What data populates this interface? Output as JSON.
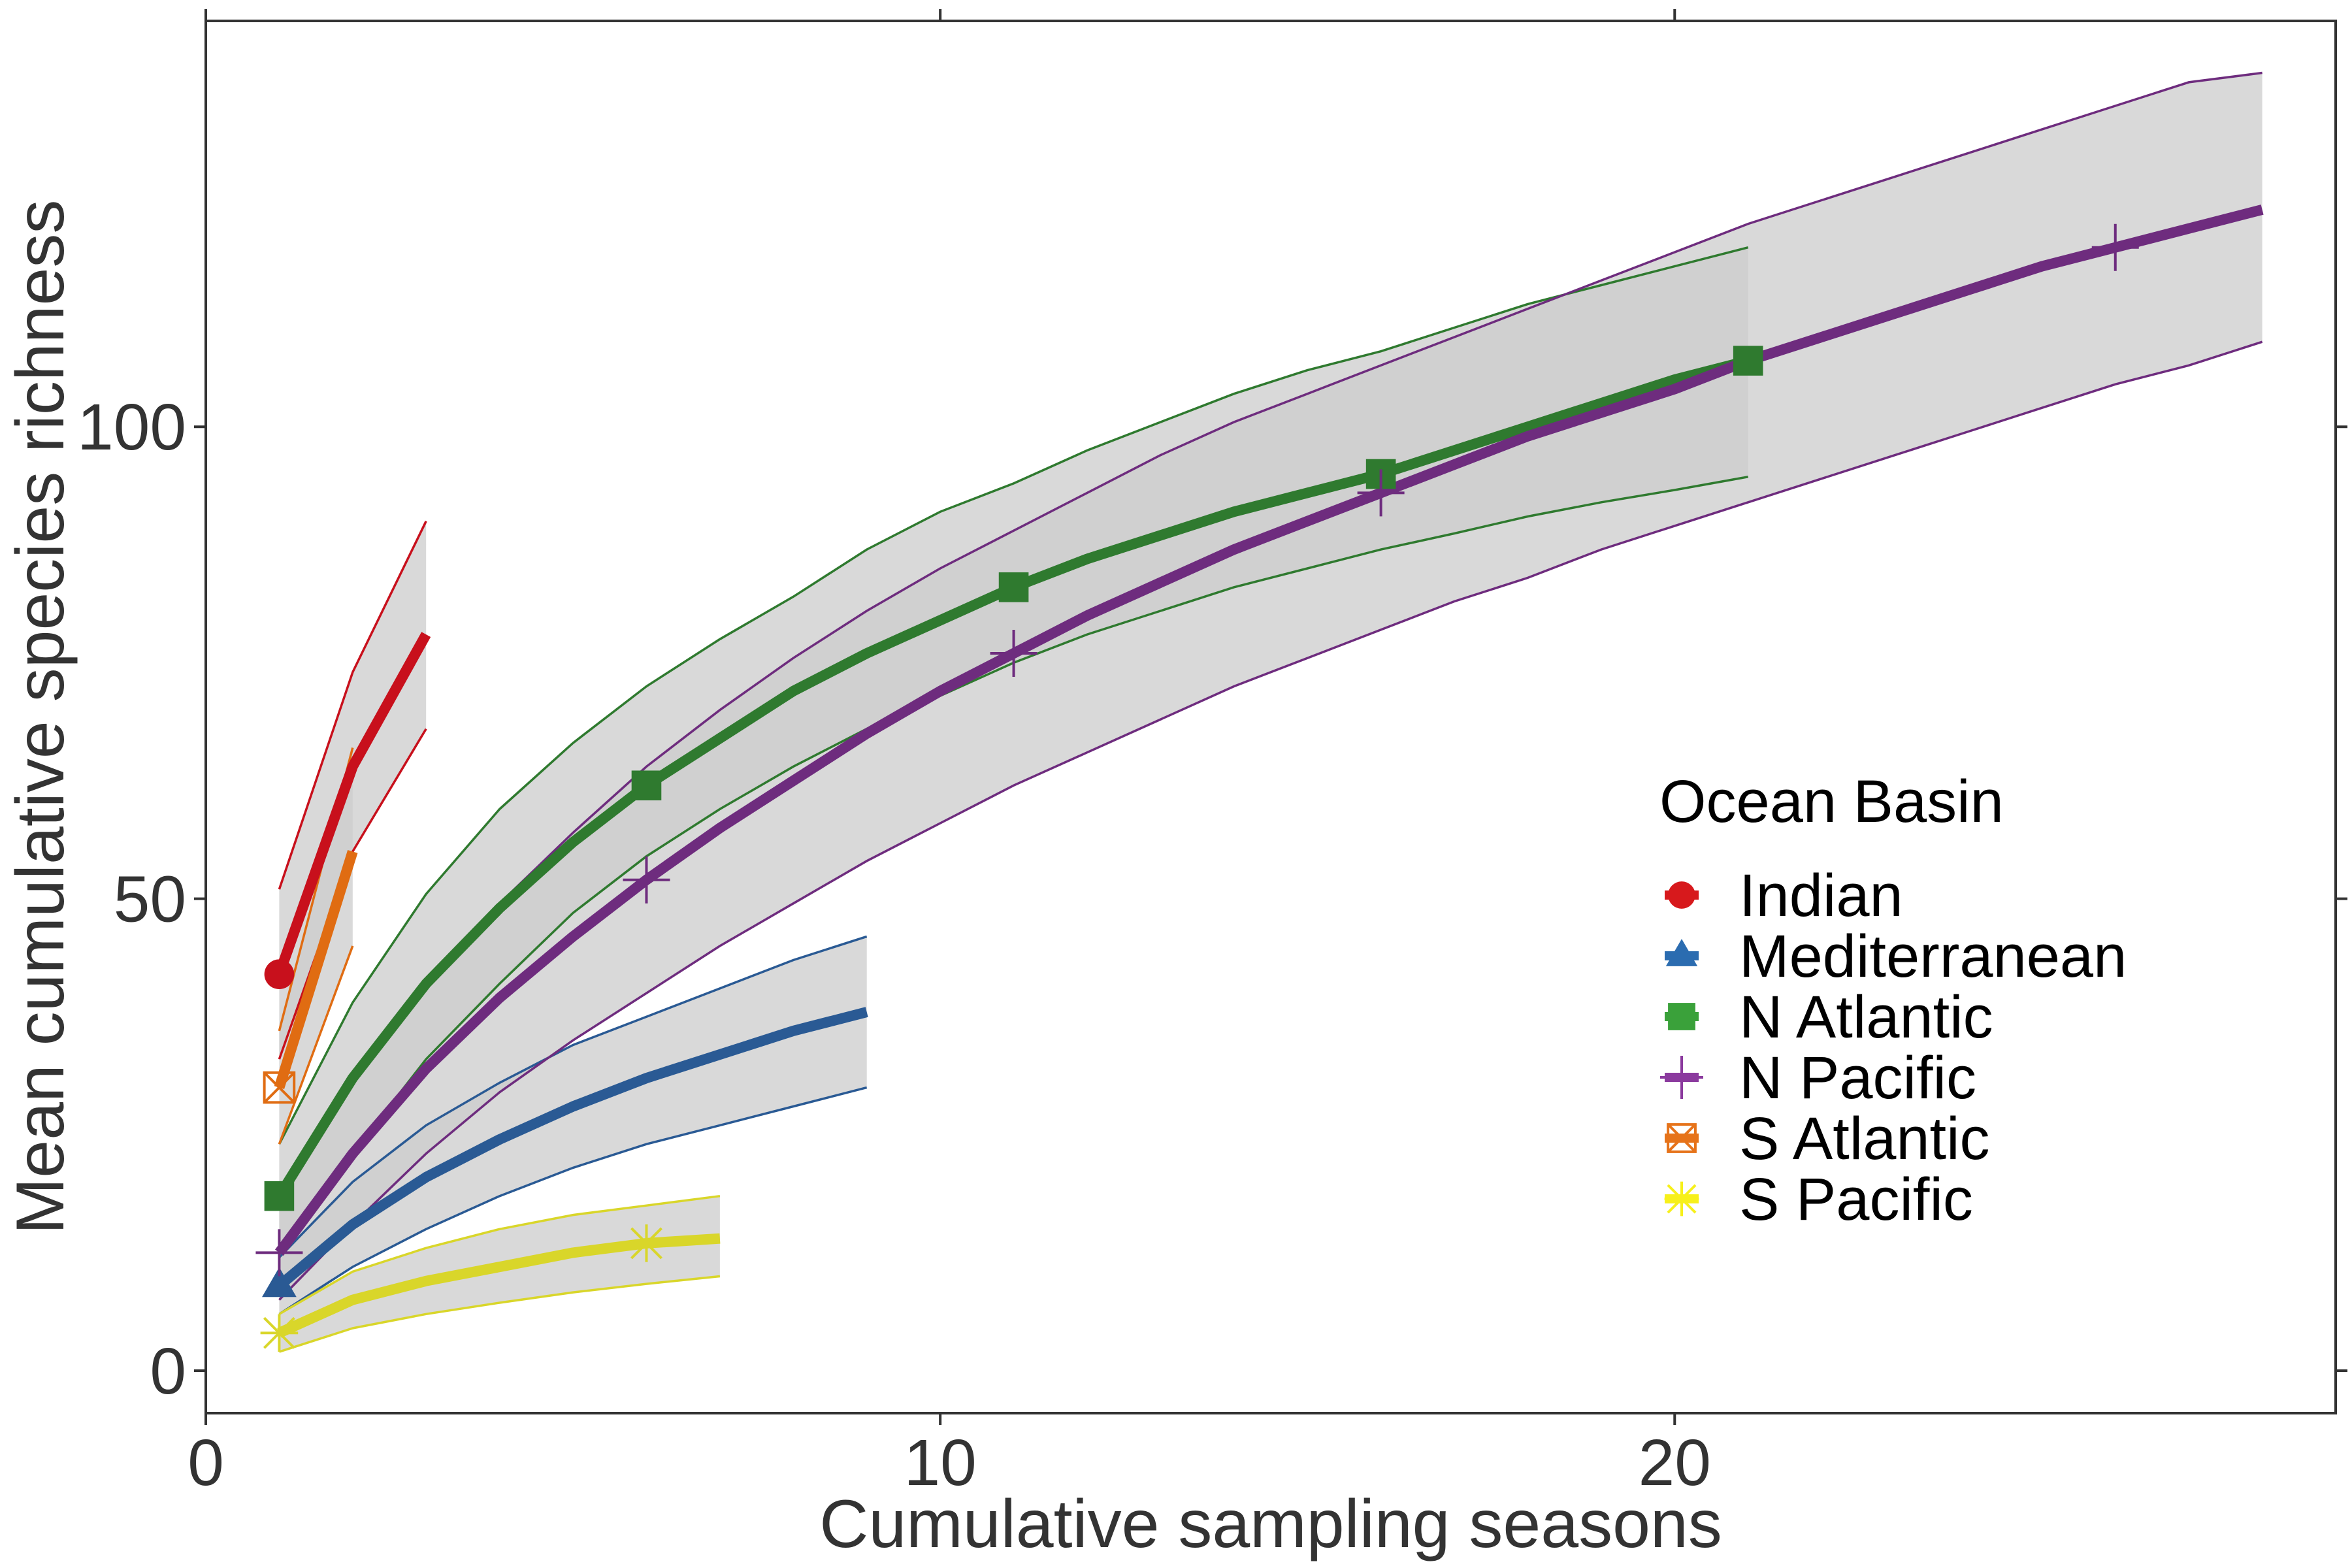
{
  "chart_data": {
    "type": "line",
    "title": "",
    "xlabel": "Cumulative sampling seasons",
    "ylabel": "Mean cumulative species richness",
    "xlim": [
      0,
      29
    ],
    "ylim": [
      -4.5,
      143
    ],
    "x_ticks": [
      0,
      10,
      20
    ],
    "y_ticks": [
      0,
      50,
      100
    ],
    "x_tick_labels": [
      "0",
      "10",
      "20"
    ],
    "y_tick_labels": [
      "0",
      "50",
      "100"
    ],
    "grid": false,
    "confidence_band": true,
    "legend": {
      "title": "Ocean Basin",
      "position": "right"
    },
    "band_color": "#cccccc",
    "series": [
      {
        "name": "Indian",
        "color": "#d7191c",
        "line_color": "#c8101c",
        "marker": "circle",
        "x": [
          1,
          2,
          3
        ],
        "y": [
          42,
          64,
          78
        ],
        "lower": [
          33,
          55,
          68
        ],
        "upper": [
          51,
          74,
          90
        ],
        "marker_x": [
          1
        ]
      },
      {
        "name": "Mediterranean",
        "color": "#2b6cb0",
        "line_color": "#2a5a94",
        "marker": "triangle",
        "x": [
          1,
          2,
          3,
          4,
          5,
          6,
          7,
          8,
          9
        ],
        "y": [
          9,
          15.5,
          20.5,
          24.5,
          28,
          31,
          33.5,
          36,
          38
        ],
        "lower": [
          6,
          11,
          15,
          18.5,
          21.5,
          24,
          26,
          28,
          30
        ],
        "upper": [
          12,
          20,
          26,
          30.5,
          34.5,
          37.5,
          40.5,
          43.5,
          46
        ]
      },
      {
        "name": "N Atlantic",
        "color": "#3aa13a",
        "line_color": "#2f7a2f",
        "marker": "square",
        "x": [
          1,
          2,
          3,
          4,
          5,
          6,
          7,
          8,
          9,
          10,
          11,
          12,
          13,
          14,
          15,
          16,
          17,
          18,
          19,
          20,
          21
        ],
        "y": [
          18.5,
          31,
          41,
          49,
          56,
          62,
          67,
          72,
          76,
          79.5,
          83,
          86,
          88.5,
          91,
          93,
          95,
          97.5,
          100,
          102.5,
          105,
          107
        ],
        "lower": [
          13,
          23,
          33,
          41,
          48.5,
          54.5,
          59.5,
          64,
          68,
          71.5,
          75,
          78,
          80.5,
          83,
          85,
          87,
          88.7,
          90.5,
          92,
          93.3,
          94.7
        ],
        "upper": [
          24,
          39,
          50.5,
          59.5,
          66.5,
          72.5,
          77.5,
          82,
          87,
          91,
          94,
          97.5,
          100.5,
          103.5,
          106,
          108,
          110.5,
          113,
          115,
          117,
          119
        ],
        "marker_x": [
          1,
          6,
          11,
          16,
          21
        ]
      },
      {
        "name": "N Pacific",
        "color": "#8b3a9e",
        "line_color": "#6e2c7e",
        "marker": "plus",
        "x": [
          1,
          2,
          3,
          4,
          5,
          6,
          7,
          8,
          9,
          10,
          11,
          12,
          13,
          14,
          15,
          16,
          17,
          18,
          19,
          20,
          21,
          22,
          23,
          24,
          25,
          26,
          27,
          28
        ],
        "y": [
          12.5,
          23,
          32,
          39.5,
          46,
          52,
          57.5,
          62.5,
          67.5,
          72,
          76,
          80,
          83.5,
          87,
          90,
          93,
          96,
          99,
          101.5,
          104,
          107,
          109.5,
          112,
          114.5,
          117,
          119,
          121,
          123
        ],
        "lower": [
          7.5,
          15.5,
          23,
          29.5,
          35,
          40,
          45,
          49.5,
          54,
          58,
          62,
          65.5,
          69,
          72.5,
          75.5,
          78.5,
          81.5,
          84,
          87,
          89.5,
          92,
          94.5,
          97,
          99.5,
          102,
          104.5,
          106.5,
          109
        ],
        "upper": [
          18,
          30.5,
          41,
          49.5,
          57,
          64,
          70,
          75.5,
          80.5,
          85,
          89,
          93,
          97,
          100.5,
          103.5,
          106.5,
          109.5,
          112.5,
          115.5,
          118.5,
          121.5,
          124,
          126.5,
          129,
          131.5,
          134,
          136.5,
          137.5
        ],
        "marker_x": [
          1,
          6,
          11,
          16,
          26
        ]
      },
      {
        "name": "S Atlantic",
        "color": "#e6731a",
        "line_color": "#e06c12",
        "marker": "square-x",
        "x": [
          1,
          2
        ],
        "y": [
          30,
          55
        ],
        "lower": [
          24,
          45
        ],
        "upper": [
          36,
          66
        ],
        "marker_x": [
          1
        ]
      },
      {
        "name": "S Pacific",
        "color": "#f7f01a",
        "line_color": "#d9d62a",
        "marker": "asterisk",
        "x": [
          1,
          2,
          3,
          4,
          5,
          6,
          7
        ],
        "y": [
          4,
          7.5,
          9.5,
          11,
          12.5,
          13.5,
          14
        ],
        "lower": [
          2,
          4.5,
          6,
          7.2,
          8.3,
          9.2,
          10
        ],
        "upper": [
          6,
          10.5,
          13,
          15,
          16.5,
          17.5,
          18.5
        ],
        "marker_x": [
          1,
          6
        ]
      }
    ]
  }
}
